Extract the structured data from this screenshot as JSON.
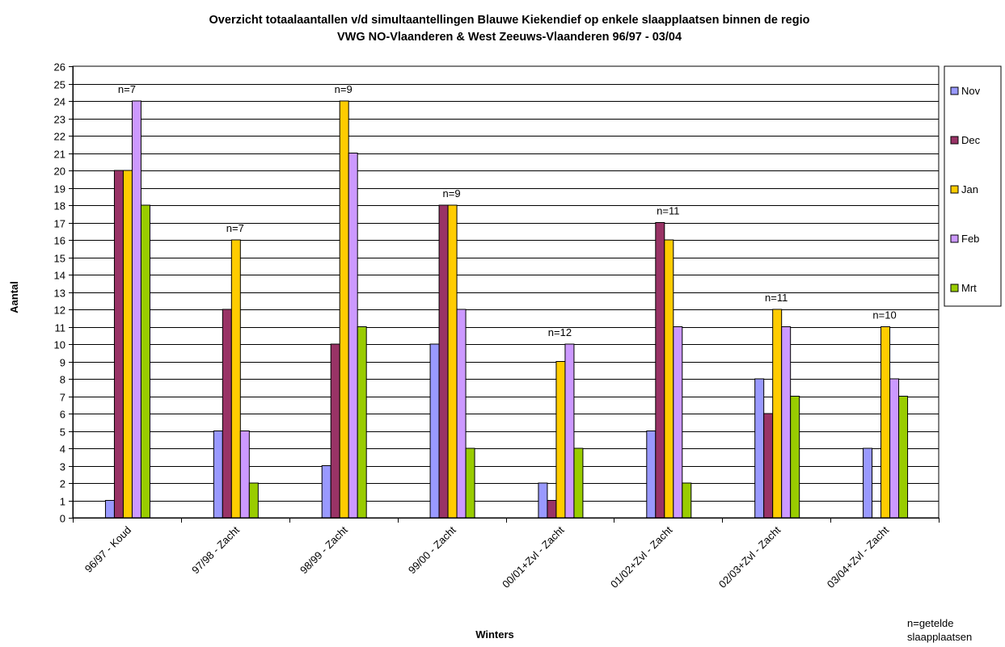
{
  "chart_data": {
    "type": "bar",
    "title": "Overzicht totaalaantallen v/d simultaantellingen Blauwe Kiekendief op enkele slaapplaatsen binnen de regio",
    "subtitle": "VWG NO-Vlaanderen & West Zeeuws-Vlaanderen 96/97 - 03/04",
    "xlabel": "Winters",
    "ylabel": "Aantal",
    "ylim": [
      0,
      26
    ],
    "ytick_step": 1,
    "grid": true,
    "legend_position": "right",
    "categories": [
      "96/97 - Koud",
      "97/98 - Zacht",
      "98/99 - Zacht",
      "99/00 - Zacht",
      "00/01+Zvl - Zacht",
      "01/02+Zvl - Zacht",
      "02/03+Zvl - Zacht",
      "03/04+Zvl - Zacht"
    ],
    "category_annotations": [
      "n=7",
      "n=7",
      "n=9",
      "n=9",
      "n=12",
      "n=11",
      "n=11",
      "n=10"
    ],
    "series": [
      {
        "name": "Nov",
        "color": "#9999ff",
        "values": [
          1,
          5,
          3,
          10,
          2,
          5,
          8,
          4
        ]
      },
      {
        "name": "Dec",
        "color": "#993366",
        "values": [
          20,
          12,
          10,
          18,
          1,
          17,
          6,
          0
        ]
      },
      {
        "name": "Jan",
        "color": "#ffcc00",
        "values": [
          20,
          16,
          24,
          18,
          9,
          16,
          12,
          11
        ]
      },
      {
        "name": "Feb",
        "color": "#cc99ff",
        "values": [
          24,
          5,
          21,
          12,
          10,
          11,
          11,
          8
        ]
      },
      {
        "name": "Mrt",
        "color": "#99cc00",
        "values": [
          18,
          2,
          11,
          4,
          4,
          2,
          7,
          7
        ]
      }
    ],
    "note": [
      "n=getelde",
      "slaapplaatsen"
    ]
  }
}
